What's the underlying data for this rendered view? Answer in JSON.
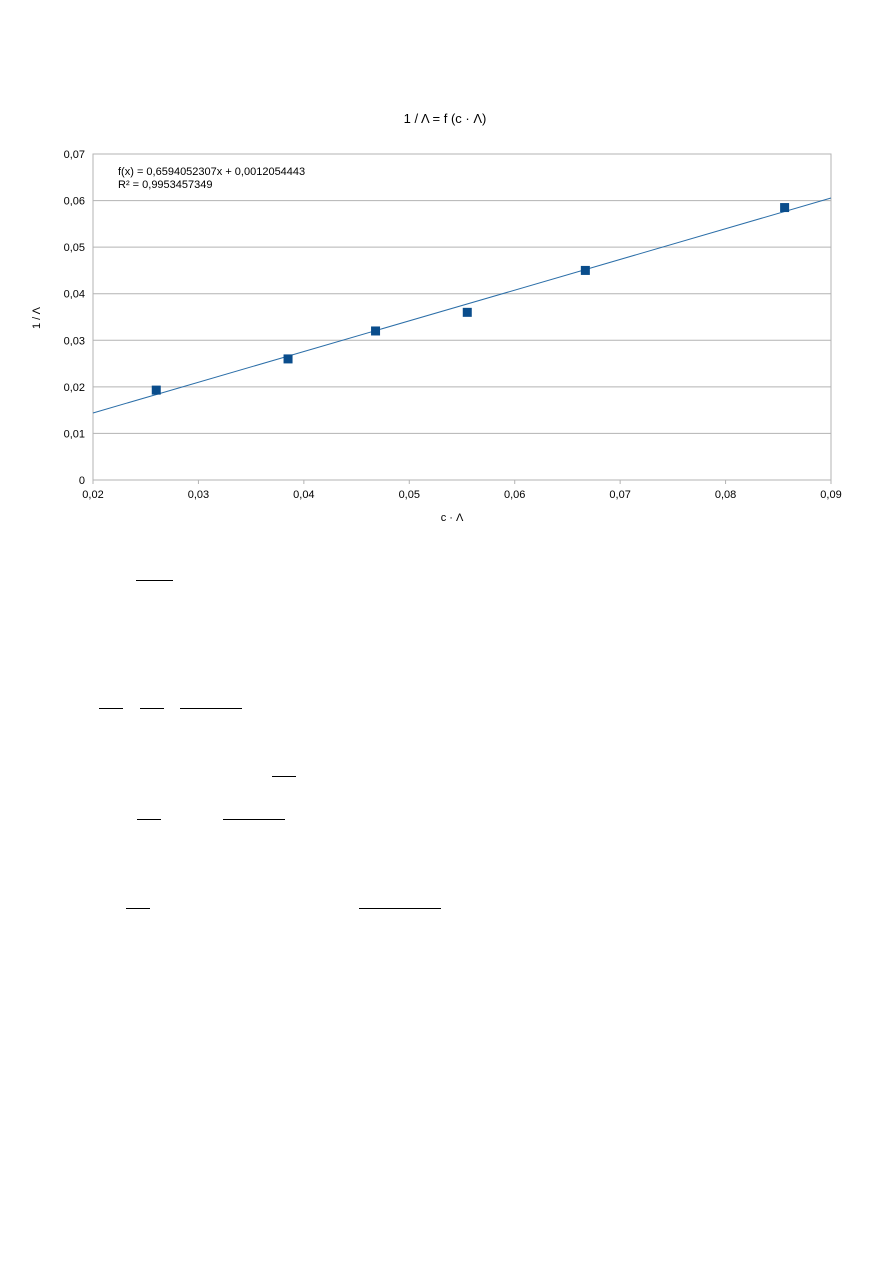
{
  "chart_data": {
    "type": "scatter",
    "title": "1 / Λ = f (c · Λ)",
    "xlabel": "c · Λ",
    "ylabel": "1 / Λ",
    "xlim": [
      0.02,
      0.09
    ],
    "ylim": [
      0,
      0.07
    ],
    "x_ticks": [
      0.02,
      0.03,
      0.04,
      0.05,
      0.06,
      0.07,
      0.08,
      0.09
    ],
    "x_tick_labels": [
      "0,02",
      "0,03",
      "0,04",
      "0,05",
      "0,06",
      "0,07",
      "0,08",
      "0,09"
    ],
    "y_ticks": [
      0,
      0.01,
      0.02,
      0.03,
      0.04,
      0.05,
      0.06,
      0.07
    ],
    "y_tick_labels": [
      "0",
      "0,01",
      "0,02",
      "0,03",
      "0,04",
      "0,05",
      "0,06",
      "0,07"
    ],
    "grid": "horizontal",
    "series": [
      {
        "x": [
          0.026,
          0.0385,
          0.0468,
          0.0555,
          0.0667,
          0.0856
        ],
        "y": [
          0.0193,
          0.026,
          0.032,
          0.036,
          0.045,
          0.0585
        ],
        "marker": "square",
        "color": "#0a4d8c"
      }
    ],
    "trendline": {
      "slope": 0.6594052307,
      "intercept": 0.0012054443,
      "color": "#2b6ea8",
      "equation_label": "f(x) = 0,6594052307x + 0,0012054443",
      "r2_label": "R² = 0,9953457349"
    }
  }
}
